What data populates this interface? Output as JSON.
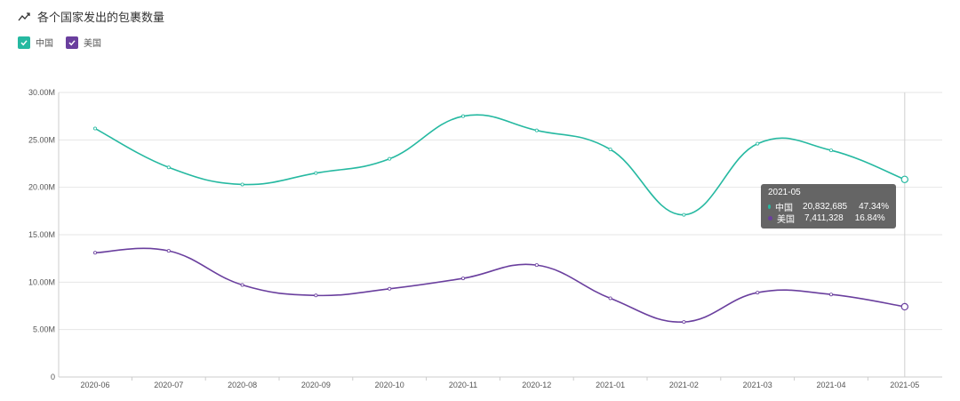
{
  "header": {
    "title": "各个国家发出的包裹数量",
    "icon": "trend-line-icon"
  },
  "legend": [
    {
      "label": "中国",
      "color": "#26b9a1"
    },
    {
      "label": "美国",
      "color": "#6a3f9e"
    }
  ],
  "tooltip": {
    "title": "2021-05",
    "rows": [
      {
        "name": "中国",
        "value": "20,832,685",
        "percent": "47.34%"
      },
      {
        "name": "美国",
        "value": "7,411,328",
        "percent": "16.84%"
      }
    ]
  },
  "chart_data": {
    "type": "line",
    "title": "各个国家发出的包裹数量",
    "categories": [
      "2020-06",
      "2020-07",
      "2020-08",
      "2020-09",
      "2020-10",
      "2020-11",
      "2020-12",
      "2021-01",
      "2021-02",
      "2021-03",
      "2021-04",
      "2021-05"
    ],
    "yticks": [
      "0",
      "5.00M",
      "10.00M",
      "15.00M",
      "20.00M",
      "25.00M",
      "30.00M"
    ],
    "ylim": [
      0,
      30000000
    ],
    "grid": true,
    "legend_position": "top-left",
    "series": [
      {
        "name": "中国",
        "color": "#26b9a1",
        "values": [
          26200000,
          22100000,
          20300000,
          21500000,
          23000000,
          27500000,
          26000000,
          24000000,
          17100000,
          24600000,
          23900000,
          20832685
        ]
      },
      {
        "name": "美国",
        "color": "#6a3f9e",
        "values": [
          13100000,
          13300000,
          9700000,
          8600000,
          9300000,
          10400000,
          11800000,
          8300000,
          5800000,
          8900000,
          8700000,
          7411328
        ]
      }
    ]
  }
}
